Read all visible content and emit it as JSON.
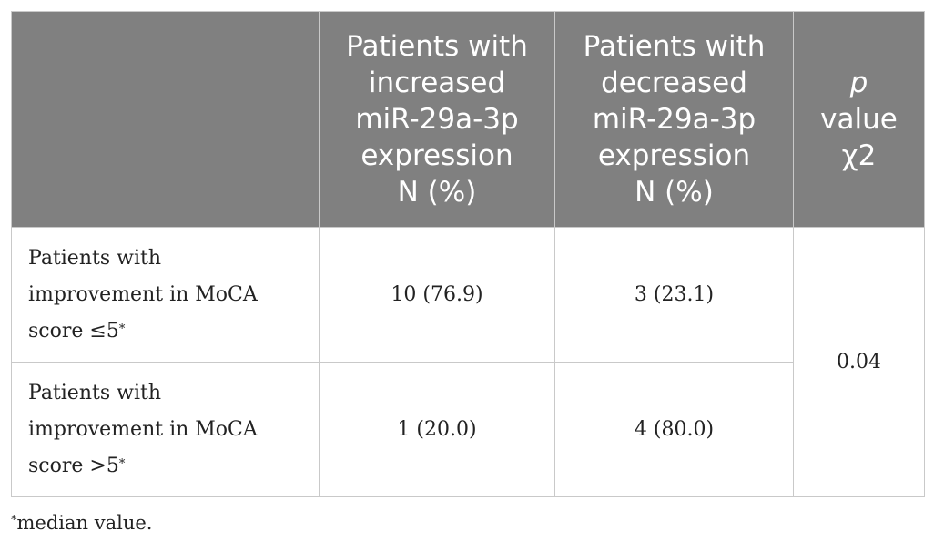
{
  "table": {
    "headers": {
      "col0": "",
      "col1": [
        "Patients with",
        "increased",
        "miR-29a-3p",
        "expression",
        "N (%)"
      ],
      "col2": [
        "Patients with",
        "decreased",
        "miR-29a-3p",
        "expression",
        "N (%)"
      ],
      "col3_italic": "p",
      "col3": [
        "value",
        "χ2"
      ]
    },
    "rows": [
      {
        "label_lines": [
          "Patients with",
          "improvement in MoCA",
          "score ≤5"
        ],
        "label_mark": "*",
        "increased": "10 (76.9)",
        "decreased": "3 (23.1)"
      },
      {
        "label_lines": [
          "Patients with",
          "improvement in MoCA",
          "score >5"
        ],
        "label_mark": "*",
        "increased": "1 (20.0)",
        "decreased": "4 (80.0)"
      }
    ],
    "p_value": "0.04"
  },
  "footnote": {
    "mark": "*",
    "text": "median value."
  }
}
